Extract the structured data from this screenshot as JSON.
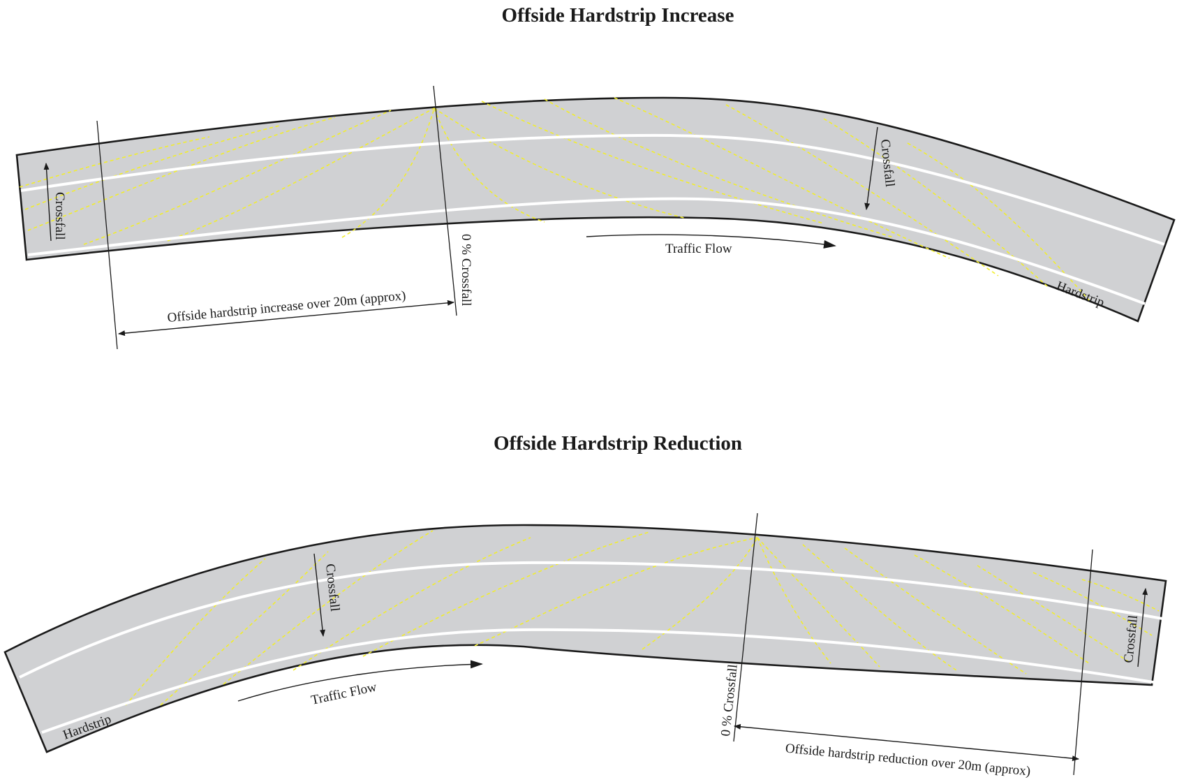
{
  "increase_section": {
    "title": "Offside Hardstrip Increase",
    "crossfall_left_label": "Crossfall",
    "zero_crossfall_label": "0 % Crossfall",
    "crossfall_right_label": "Crossfall",
    "traffic_flow_label": "Traffic Flow",
    "hardstrip_label": "Hardstrip",
    "dimension_label": "Offside hardstrip increase over 20m (approx)"
  },
  "reduction_section": {
    "title": "Offside Hardstrip Reduction",
    "crossfall_left_label": "Crossfall",
    "zero_crossfall_label": "0 % Crossfall",
    "crossfall_right_label": "Crossfall",
    "traffic_flow_label": "Traffic Flow",
    "hardstrip_label": "Hardstrip",
    "dimension_label": "Offside hardstrip reduction over 20m (approx)"
  },
  "colors": {
    "road_surface": "#d0d1d3",
    "lane_marking": "#ffffff",
    "crossfall_contours": "#f2ee2a",
    "outline": "#1a1a1a"
  }
}
